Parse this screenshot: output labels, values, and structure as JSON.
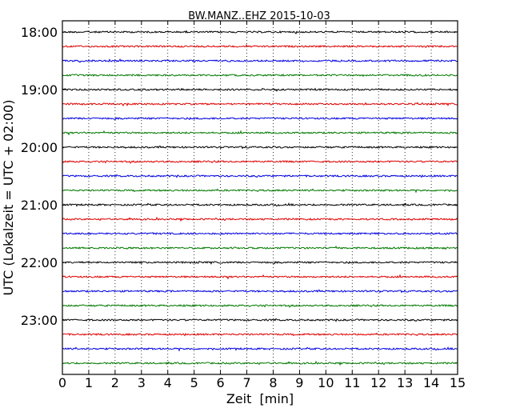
{
  "chart_data": {
    "type": "line",
    "title": "BW.MANZ..EHZ 2015-10-03",
    "xlabel": "Zeit  [min]",
    "ylabel": "UTC (Lokalzeit = UTC + 02:00)",
    "xlim": [
      0,
      15
    ],
    "x_ticks": [
      "0",
      "1",
      "2",
      "3",
      "4",
      "5",
      "6",
      "7",
      "8",
      "9",
      "10",
      "11",
      "12",
      "13",
      "14",
      "15"
    ],
    "y_ticks": [
      "18:00",
      "19:00",
      "20:00",
      "21:00",
      "22:00",
      "23:00"
    ],
    "grid": "vertical-dotted",
    "trace_interval_min": 15,
    "first_trace": "18:00",
    "trace_count": 24,
    "trace_colors": [
      "#000000",
      "#e00000",
      "#0000e0",
      "#007a00"
    ],
    "signal": "background noise, no visible events"
  }
}
